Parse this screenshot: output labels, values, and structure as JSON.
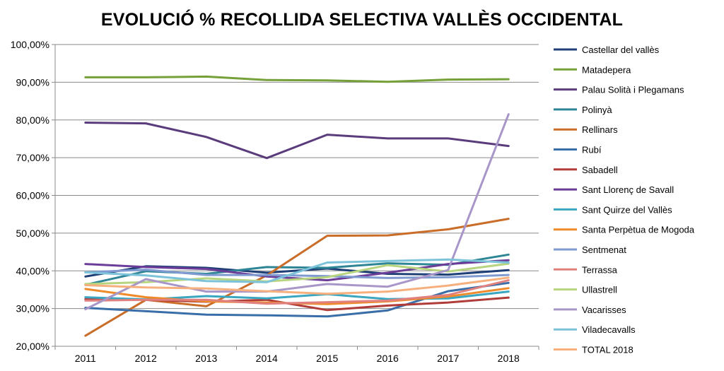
{
  "chart_data": {
    "type": "line",
    "title": "EVOLUCIÓ % RECOLLIDA SELECTIVA VALLÈS OCCIDENTAL",
    "xlabel": "",
    "ylabel": "",
    "x": [
      "2011",
      "2012",
      "2013",
      "2014",
      "2015",
      "2016",
      "2017",
      "2018"
    ],
    "ylim": [
      20,
      100
    ],
    "yticks": [
      "20,00%",
      "30,00%",
      "40,00%",
      "50,00%",
      "60,00%",
      "70,00%",
      "80,00%",
      "90,00%",
      "100,00%"
    ],
    "grid": "horizontal",
    "legend_position": "right",
    "series": [
      {
        "name": "Castellar del vallès",
        "color": "#1f3f77",
        "values": [
          38.5,
          41.2,
          40.8,
          39.5,
          40.6,
          39.2,
          39.0,
          40.2
        ]
      },
      {
        "name": "Matadepera",
        "color": "#76a03a",
        "values": [
          91.3,
          91.3,
          91.5,
          90.6,
          90.5,
          90.1,
          90.7,
          90.8
        ]
      },
      {
        "name": "Palau Solità i Plegamans",
        "color": "#5a3c7c",
        "values": [
          79.3,
          79.1,
          75.5,
          69.9,
          76.1,
          75.1,
          75.1,
          73.1
        ]
      },
      {
        "name": "Polinyà",
        "color": "#2e8596",
        "values": [
          36.3,
          39.9,
          39.2,
          41.0,
          40.8,
          42.0,
          41.6,
          44.3
        ]
      },
      {
        "name": "Rellinars",
        "color": "#c96d29",
        "values": [
          22.8,
          32.3,
          30.6,
          38.8,
          49.3,
          49.4,
          51.0,
          53.8
        ]
      },
      {
        "name": "Rubí",
        "color": "#3a6ea8",
        "values": [
          30.2,
          29.3,
          28.4,
          28.2,
          27.9,
          29.5,
          34.6,
          36.8
        ]
      },
      {
        "name": "Sabadell",
        "color": "#b03c3a",
        "values": [
          32.5,
          32.3,
          31.8,
          32.3,
          29.6,
          30.8,
          31.6,
          32.9
        ]
      },
      {
        "name": "Sant Llorenç de Savall",
        "color": "#6c3d98",
        "values": [
          41.8,
          41.0,
          40.5,
          38.5,
          37.5,
          39.5,
          41.8,
          42.8
        ]
      },
      {
        "name": "Sant Quirze del Vallès",
        "color": "#3aa6c0",
        "values": [
          33.0,
          32.4,
          33.3,
          32.7,
          33.8,
          32.5,
          32.7,
          34.5
        ]
      },
      {
        "name": "Santa Perpètua de Mogoda",
        "color": "#ee8a2a",
        "values": [
          35.2,
          33.0,
          31.9,
          31.6,
          31.2,
          31.9,
          33.2,
          35.4
        ]
      },
      {
        "name": "Sentmenat",
        "color": "#7f9ad0",
        "values": [
          39.6,
          40.3,
          38.9,
          38.9,
          38.6,
          38.1,
          38.3,
          38.9
        ]
      },
      {
        "name": "Terrassa",
        "color": "#e0807f",
        "values": [
          32.1,
          32.3,
          32.3,
          31.3,
          31.7,
          32.1,
          33.6,
          37.5
        ]
      },
      {
        "name": "Ullastrell",
        "color": "#b7d47f",
        "values": [
          36.5,
          37.0,
          38.0,
          37.2,
          38.3,
          41.5,
          39.8,
          41.9
        ]
      },
      {
        "name": "Vacarisses",
        "color": "#a896c9",
        "values": [
          29.8,
          37.8,
          34.5,
          34.5,
          36.5,
          35.8,
          40.2,
          81.5
        ]
      },
      {
        "name": "Viladecavalls",
        "color": "#7cc3d9",
        "values": [
          39.6,
          38.8,
          37.3,
          37.0,
          42.2,
          42.6,
          43.0,
          42.2
        ]
      },
      {
        "name": "TOTAL 2018",
        "color": "#f6b07e",
        "values": [
          36.2,
          35.6,
          35.3,
          34.6,
          33.9,
          34.5,
          36.1,
          38.2
        ]
      }
    ]
  }
}
